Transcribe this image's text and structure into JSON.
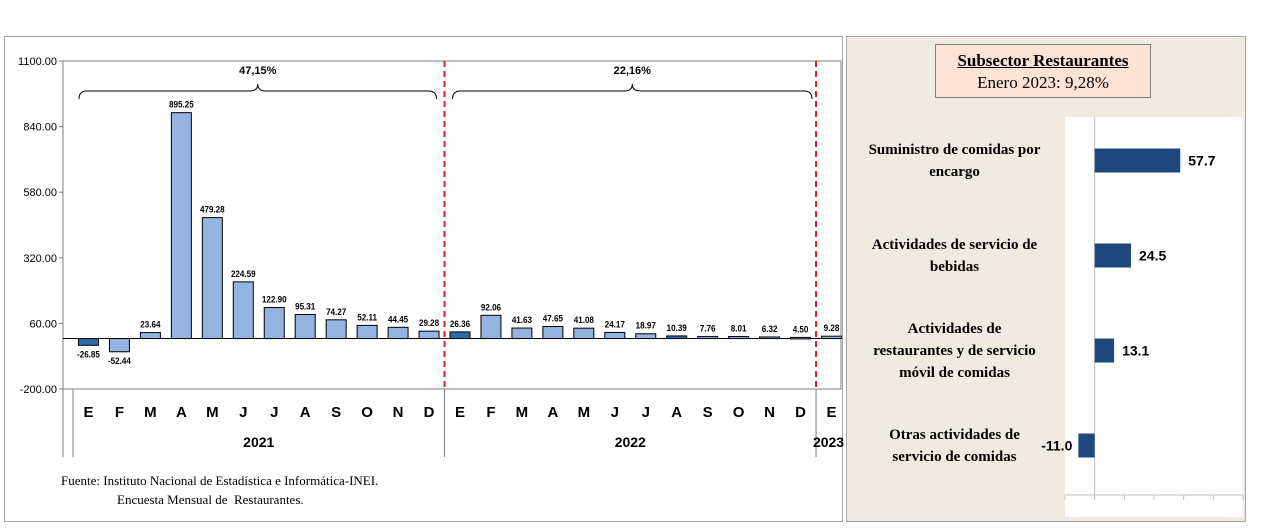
{
  "left_chart": {
    "chart_data": {
      "type": "bar",
      "ylim": [
        -200,
        1100
      ],
      "yticks": [
        "1100.00",
        "840.00",
        "580.00",
        "320.00",
        "60.00",
        "-200.00"
      ],
      "ytick_values": [
        1100,
        840,
        580,
        320,
        60,
        -200
      ],
      "months": [
        "E",
        "F",
        "M",
        "A",
        "M",
        "J",
        "J",
        "A",
        "S",
        "O",
        "N",
        "D",
        "E",
        "F",
        "M",
        "A",
        "M",
        "J",
        "J",
        "A",
        "S",
        "O",
        "N",
        "D",
        "E"
      ],
      "values": [
        -26.85,
        -52.44,
        23.64,
        895.25,
        479.28,
        224.59,
        122.9,
        95.31,
        74.27,
        52.11,
        44.45,
        29.28,
        26.36,
        92.06,
        41.63,
        47.65,
        41.08,
        24.17,
        18.97,
        10.39,
        7.76,
        8.01,
        6.32,
        4.5,
        9.28
      ],
      "value_labels": [
        "-26.85",
        "-52.44",
        "23.64",
        "895.25",
        "479.28",
        "224.59",
        "122.90",
        "95.31",
        "74.27",
        "52.11",
        "44.45",
        "29.28",
        "26.36",
        "92.06",
        "41.63",
        "47.65",
        "41.08",
        "24.17",
        "18.97",
        "10.39",
        "7.76",
        "8.01",
        "6.32",
        "4.50",
        "9.28"
      ],
      "highlight": [
        true,
        false,
        false,
        false,
        false,
        false,
        false,
        false,
        false,
        false,
        false,
        false,
        true,
        false,
        false,
        false,
        false,
        false,
        false,
        true,
        false,
        false,
        false,
        false,
        false
      ],
      "years": [
        "2021",
        "2022",
        "2023"
      ],
      "brackets": [
        "47,15%",
        "22,16%"
      ],
      "colors": {
        "bar": "#95b3e0",
        "highlight": "#2e6aab",
        "divider": "#e02020",
        "stroke": "#000000"
      }
    },
    "source_line1": "Fuente: Instituto Nacional de Estadística e Informática-INEI.",
    "source_line2": "Encuesta Mensual de  Restaurantes."
  },
  "right_chart": {
    "title_line1": "Subsector Restaurantes",
    "title_line2": "Enero 2023: 9,28%",
    "chart_data": {
      "type": "bar",
      "orientation": "horizontal",
      "categories": [
        "Suministro de comidas por encargo",
        "Actividades de servicio de bebidas",
        "Actividades de restaurantes y de servicio móvil de comidas",
        "Otras actividades de servicio de comidas"
      ],
      "category_lines": [
        [
          "Suministro de comidas por",
          "encargo"
        ],
        [
          "Actividades de servicio de",
          "bebidas"
        ],
        [
          "Actividades de",
          "restaurantes y de servicio",
          "móvil de comidas"
        ],
        [
          "Otras actividades de",
          "servicio de comidas"
        ]
      ],
      "values": [
        57.7,
        24.5,
        13.1,
        -11.0
      ],
      "value_labels": [
        "57.7",
        "24.5",
        "13.1",
        "-11.0"
      ],
      "xlim": [
        -20,
        100
      ],
      "colors": {
        "bar": "#1f497d"
      }
    }
  }
}
